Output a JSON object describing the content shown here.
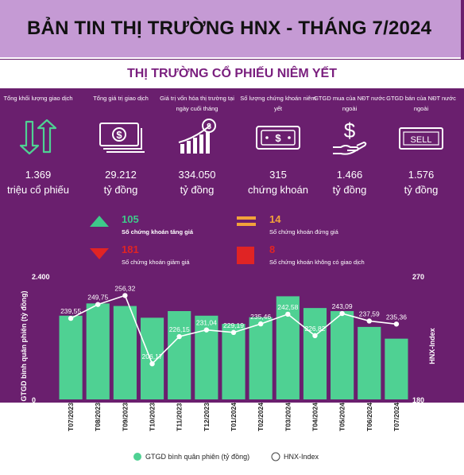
{
  "header": {
    "title": "BẢN TIN THỊ TRƯỜNG HNX - THÁNG 7/2024"
  },
  "section": {
    "title": "THỊ TRƯỜNG CỔ PHIẾU NIÊM YẾT"
  },
  "stats": [
    {
      "label": "Tổng khối lượng giao dịch",
      "value": "1.369",
      "unit": "triệu cổ phiếu",
      "icon": "up-down-arrows-icon"
    },
    {
      "label": "Tổng giá trị giao dịch",
      "value": "29.212",
      "unit": "tỷ đồng",
      "icon": "banknotes-icon"
    },
    {
      "label": "Giá trị vốn hóa thị trường tại ngày cuối tháng",
      "value": "334.050",
      "unit": "tỷ đồng",
      "icon": "rising-bar-chart-icon"
    },
    {
      "label": "Số lượng chứng khoán niêm yết",
      "value": "315",
      "unit": "chứng khoán",
      "icon": "banknote-icon"
    },
    {
      "label": "GTGD mua của NĐT nước ngoài",
      "value": "1.466",
      "unit": "tỷ đồng",
      "icon": "dollar-hand-icon"
    },
    {
      "label": "GTGD bán của NĐT nước ngoài",
      "value": "1.576",
      "unit": "tỷ đồng",
      "icon": "sell-sign-icon"
    }
  ],
  "breadth": {
    "up": {
      "count": "105",
      "label": "Số chứng khoán tăng giá",
      "color": "#3ec98a"
    },
    "unchanged": {
      "count": "14",
      "label": "Số chứng khoán đứng giá",
      "color": "#f2a23a"
    },
    "down": {
      "count": "181",
      "label": "Số chứng khoán giảm giá",
      "color": "#e02424"
    },
    "no_trade": {
      "count": "8",
      "label": "Số chứng khoán không có giao dịch",
      "color": "#e02424"
    }
  },
  "colors": {
    "bar": "#4fd193",
    "line": "#ffffff",
    "panel": "#6a1f6e"
  },
  "chart_data": {
    "type": "bar",
    "categories": [
      "T07/2023",
      "T08/2023",
      "T09/2023",
      "T10/2023",
      "T11/2023",
      "T12/2023",
      "T01/2024",
      "T02/2024",
      "T03/2024",
      "T04/2024",
      "T05/2024",
      "T06/2024",
      "T07/2024"
    ],
    "series": [
      {
        "name": "GTGD bình quân phiên (tỷ đồng)",
        "type": "bar",
        "axis": "left",
        "values": [
          1640,
          1880,
          1830,
          1600,
          1730,
          1640,
          1480,
          1610,
          2020,
          1790,
          1730,
          1420,
          1190
        ]
      },
      {
        "name": "HNX-Index",
        "type": "line",
        "axis": "right",
        "values": [
          239.55,
          249.75,
          256.32,
          206.17,
          226.15,
          231.04,
          229.19,
          235.46,
          242.58,
          226.82,
          243.09,
          237.59,
          235.36
        ],
        "labels": [
          "239,55",
          "249,75",
          "256,32",
          "206,17",
          "226,15",
          "231,04",
          "229,19",
          "235,46",
          "242,58",
          "226,82",
          "243,09",
          "237,59",
          "235,36"
        ]
      }
    ],
    "ylabel": "GTGD bình quân phiên (tỷ đồng)",
    "y2label": "HNX-Index",
    "ylim": [
      0,
      2400
    ],
    "y2lim": [
      180,
      270
    ],
    "yticks": [
      "0",
      "2.400"
    ],
    "y2ticks": [
      "180",
      "270"
    ],
    "legend_position": "bottom"
  }
}
